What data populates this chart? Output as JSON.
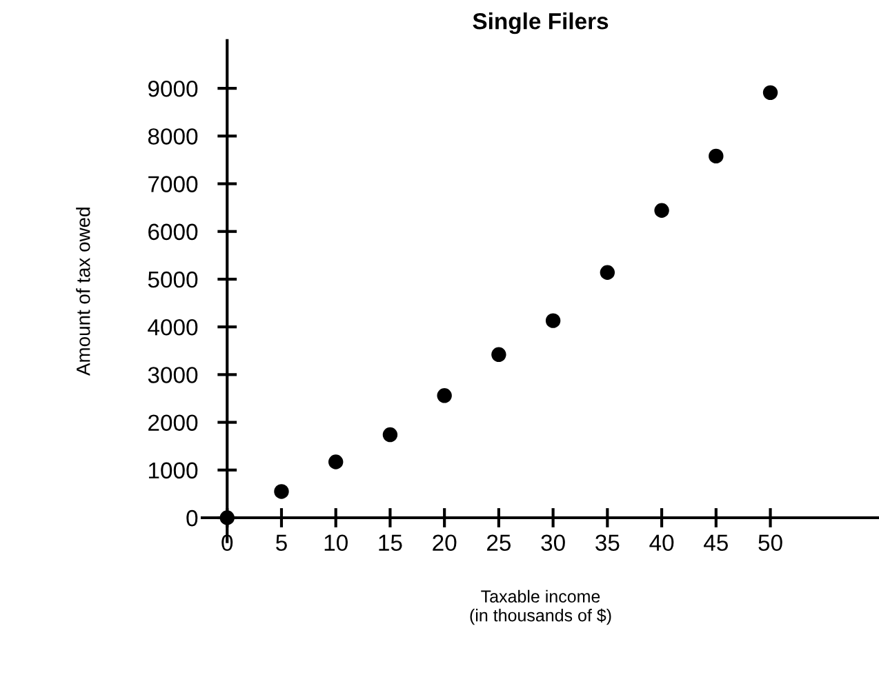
{
  "chart_data": {
    "type": "scatter",
    "title": "Single Filers",
    "xlabel": "Taxable income\n(in thousands of $)",
    "ylabel": "Amount of tax owed",
    "x": [
      0,
      5,
      10,
      15,
      20,
      25,
      30,
      35,
      40,
      45,
      50
    ],
    "values": [
      0,
      550,
      1170,
      1740,
      2560,
      3420,
      4130,
      5140,
      6440,
      7580,
      8910
    ],
    "color": "#000000",
    "marker": "circle",
    "xlim": [
      -2.3,
      60
    ],
    "ylim": [
      -500,
      10000
    ],
    "xticks": [
      0,
      5,
      10,
      15,
      20,
      25,
      30,
      35,
      40,
      45,
      50
    ],
    "yticks": [
      0,
      1000,
      2000,
      3000,
      4000,
      5000,
      6000,
      7000,
      8000,
      9000
    ],
    "grid": false
  }
}
